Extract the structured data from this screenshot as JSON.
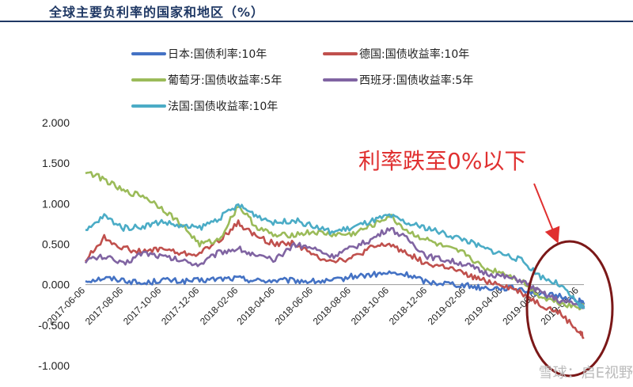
{
  "header": {
    "title": "全球主要负利率的国家和地区（%）"
  },
  "chart_data": {
    "type": "line",
    "title": "全球主要负利率的国家和地区（%）",
    "xlabel": "",
    "ylabel": "",
    "ylim": [
      -1.0,
      2.0
    ],
    "yticks": [
      "2.000",
      "1.500",
      "1.000",
      "0.500",
      "0.000",
      "-0.500",
      "-1.000"
    ],
    "ytick_values": [
      2.0,
      1.5,
      1.0,
      0.5,
      0.0,
      -0.5,
      -1.0
    ],
    "xlim": [
      "2017-06-06",
      "2019-08-14"
    ],
    "xticks": [
      "2017-06-06",
      "2017-08-06",
      "2017-10-06",
      "2017-12-06",
      "2018-02-06",
      "2018-04-06",
      "2018-06-06",
      "2018-08-06",
      "2018-10-06",
      "2018-12-06",
      "2019-02-06",
      "2019-04-06",
      "2019-06-06",
      "2019-08-06"
    ],
    "grid": false,
    "legend_position": "top",
    "series": [
      {
        "name": "日本:国债利率:10年",
        "color": "#4472c4",
        "x": [
          "2017-06-06",
          "2017-07-06",
          "2017-08-06",
          "2017-09-06",
          "2017-10-06",
          "2017-11-06",
          "2017-12-06",
          "2018-01-06",
          "2018-02-06",
          "2018-03-06",
          "2018-04-06",
          "2018-05-06",
          "2018-06-06",
          "2018-07-06",
          "2018-08-06",
          "2018-09-06",
          "2018-10-06",
          "2018-11-06",
          "2018-12-06",
          "2019-01-06",
          "2019-02-06",
          "2019-03-06",
          "2019-04-06",
          "2019-05-06",
          "2019-06-06",
          "2019-07-06",
          "2019-08-06",
          "2019-08-14"
        ],
        "values": [
          0.05,
          0.08,
          0.06,
          0.01,
          0.06,
          0.04,
          0.05,
          0.07,
          0.08,
          0.05,
          0.05,
          0.05,
          0.04,
          0.04,
          0.1,
          0.12,
          0.14,
          0.12,
          0.03,
          0.02,
          -0.01,
          -0.04,
          -0.04,
          -0.05,
          -0.13,
          -0.14,
          -0.2,
          -0.22
        ]
      },
      {
        "name": "德国:国债收益率:10年",
        "color": "#c0504d",
        "x": [
          "2017-06-06",
          "2017-07-06",
          "2017-08-06",
          "2017-09-06",
          "2017-10-06",
          "2017-11-06",
          "2017-12-06",
          "2018-01-06",
          "2018-02-06",
          "2018-03-06",
          "2018-04-06",
          "2018-05-06",
          "2018-06-06",
          "2018-07-06",
          "2018-08-06",
          "2018-09-06",
          "2018-10-06",
          "2018-11-06",
          "2018-12-06",
          "2019-01-06",
          "2019-02-06",
          "2019-03-06",
          "2019-04-06",
          "2019-05-06",
          "2019-06-06",
          "2019-07-06",
          "2019-08-06",
          "2019-08-14"
        ],
        "values": [
          0.3,
          0.58,
          0.45,
          0.4,
          0.45,
          0.38,
          0.38,
          0.55,
          0.76,
          0.6,
          0.5,
          0.52,
          0.36,
          0.3,
          0.32,
          0.45,
          0.5,
          0.38,
          0.25,
          0.22,
          0.12,
          0.05,
          0.0,
          -0.1,
          -0.25,
          -0.35,
          -0.58,
          -0.65
        ]
      },
      {
        "name": "葡萄牙:国债收益率:5年",
        "color": "#9bbb59",
        "x": [
          "2017-06-06",
          "2017-07-06",
          "2017-08-06",
          "2017-09-06",
          "2017-10-06",
          "2017-11-06",
          "2017-12-06",
          "2018-01-06",
          "2018-02-06",
          "2018-03-06",
          "2018-04-06",
          "2018-05-06",
          "2018-06-06",
          "2018-07-06",
          "2018-08-06",
          "2018-09-06",
          "2018-10-06",
          "2018-11-06",
          "2018-12-06",
          "2019-01-06",
          "2019-02-06",
          "2019-03-06",
          "2019-04-06",
          "2019-05-06",
          "2019-06-06",
          "2019-07-06",
          "2019-08-06",
          "2019-08-14"
        ],
        "values": [
          1.4,
          1.3,
          1.15,
          1.1,
          0.95,
          0.75,
          0.5,
          0.55,
          0.98,
          0.72,
          0.6,
          0.62,
          0.65,
          0.62,
          0.62,
          0.72,
          0.85,
          0.65,
          0.55,
          0.45,
          0.38,
          0.2,
          0.15,
          0.05,
          -0.15,
          -0.22,
          -0.28,
          -0.25
        ]
      },
      {
        "name": "西班牙:国债收益率:5年",
        "color": "#8064a2",
        "x": [
          "2017-06-06",
          "2017-07-06",
          "2017-08-06",
          "2017-09-06",
          "2017-10-06",
          "2017-11-06",
          "2017-12-06",
          "2018-01-06",
          "2018-02-06",
          "2018-03-06",
          "2018-04-06",
          "2018-05-06",
          "2018-06-06",
          "2018-07-06",
          "2018-08-06",
          "2018-09-06",
          "2018-10-06",
          "2018-11-06",
          "2018-12-06",
          "2019-01-06",
          "2019-02-06",
          "2019-03-06",
          "2019-04-06",
          "2019-05-06",
          "2019-06-06",
          "2019-07-06",
          "2019-08-06",
          "2019-08-14"
        ],
        "values": [
          0.3,
          0.35,
          0.25,
          0.4,
          0.35,
          0.3,
          0.25,
          0.4,
          0.45,
          0.35,
          0.3,
          0.5,
          0.45,
          0.35,
          0.45,
          0.55,
          0.7,
          0.55,
          0.35,
          0.3,
          0.25,
          0.15,
          0.1,
          0.05,
          -0.1,
          -0.2,
          -0.25,
          -0.28
        ]
      },
      {
        "name": "法国:国债收益率:10年",
        "color": "#4bacc6",
        "x": [
          "2017-06-06",
          "2017-07-06",
          "2017-08-06",
          "2017-09-06",
          "2017-10-06",
          "2017-11-06",
          "2017-12-06",
          "2018-01-06",
          "2018-02-06",
          "2018-03-06",
          "2018-04-06",
          "2018-05-06",
          "2018-06-06",
          "2018-07-06",
          "2018-08-06",
          "2018-09-06",
          "2018-10-06",
          "2018-11-06",
          "2018-12-06",
          "2019-01-06",
          "2019-02-06",
          "2019-03-06",
          "2019-04-06",
          "2019-05-06",
          "2019-06-06",
          "2019-07-06",
          "2019-08-06",
          "2019-08-14"
        ],
        "values": [
          0.65,
          0.85,
          0.7,
          0.72,
          0.78,
          0.72,
          0.7,
          0.82,
          0.98,
          0.86,
          0.76,
          0.8,
          0.72,
          0.65,
          0.7,
          0.78,
          0.85,
          0.75,
          0.7,
          0.62,
          0.55,
          0.45,
          0.38,
          0.3,
          0.1,
          0.0,
          -0.25,
          -0.3
        ]
      }
    ],
    "annotations": [
      {
        "text": "利率跌至0%以下",
        "color": "#e03030"
      }
    ]
  },
  "watermark": "雪球：启E视野",
  "colors": {
    "title": "#1f3864",
    "annotation": "#e03030",
    "highlight_ellipse": "#7b1818"
  }
}
